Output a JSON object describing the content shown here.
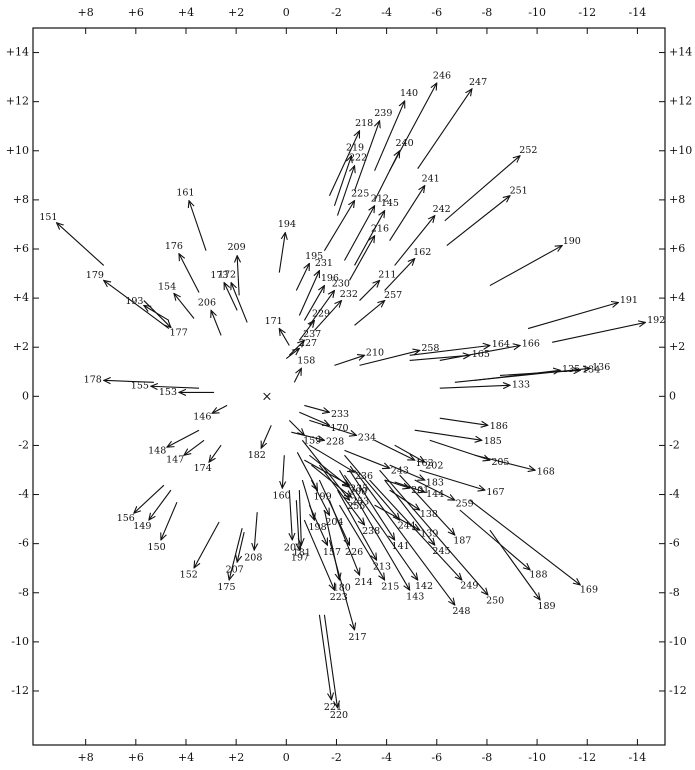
{
  "chart_data": {
    "type": "vector",
    "xlim": [
      10.1,
      -15.1
    ],
    "ylim": [
      -14.2,
      15
    ],
    "xticks": [
      {
        "value": 8,
        "label": "+8"
      },
      {
        "value": 6,
        "label": "+6"
      },
      {
        "value": 4,
        "label": "+4"
      },
      {
        "value": 2,
        "label": "+2"
      },
      0,
      -2,
      -4,
      -6,
      -8,
      -10,
      -12,
      -14
    ],
    "yticks": [
      {
        "value": 14,
        "label": "+14"
      },
      {
        "value": 12,
        "label": "+12"
      },
      {
        "value": 10,
        "label": "+10"
      },
      {
        "value": 8,
        "label": "+8"
      },
      {
        "value": 6,
        "label": "+6"
      },
      {
        "value": 4,
        "label": "+4"
      },
      {
        "value": 2,
        "label": "+2"
      },
      0,
      -2,
      -4,
      -6,
      -8,
      -10,
      -12
    ],
    "color": "#111111",
    "arrows": [
      {
        "label": "151",
        "x0": 7.28,
        "y0": 5.33,
        "x1": 9.16,
        "y1": 7.07
      },
      {
        "label": "179",
        "x0": 4.68,
        "y0": 2.76,
        "x1": 7.28,
        "y1": 4.72
      },
      {
        "label": "193",
        "x0": 4.68,
        "y0": 3.09,
        "x1": 5.68,
        "y1": 3.7
      },
      {
        "label": "177",
        "x0": 5.68,
        "y0": 3.9,
        "x1": 4.6,
        "y1": 2.8
      },
      {
        "label": "154",
        "x0": 3.68,
        "y0": 3.17,
        "x1": 4.48,
        "y1": 4.19
      },
      {
        "label": "176",
        "x0": 3.48,
        "y0": 4.23,
        "x1": 4.28,
        "y1": 5.81
      },
      {
        "label": "161",
        "x0": 3.2,
        "y0": 5.93,
        "x1": 3.88,
        "y1": 7.97
      },
      {
        "label": "206",
        "x0": 2.6,
        "y0": 2.48,
        "x1": 3.0,
        "y1": 3.5
      },
      {
        "label": "173",
        "x0": 1.96,
        "y0": 3.5,
        "x1": 2.48,
        "y1": 4.63
      },
      {
        "label": "209",
        "x0": 1.88,
        "y0": 4.11,
        "x1": 1.96,
        "y1": 5.73
      },
      {
        "label": "172",
        "x0": 1.56,
        "y0": 3.01,
        "x1": 2.2,
        "y1": 4.63
      },
      {
        "label": "194",
        "x0": 0.28,
        "y0": 5.04,
        "x1": 0.04,
        "y1": 6.67
      },
      {
        "label": "195",
        "x0": -0.4,
        "y0": 4.31,
        "x1": -0.92,
        "y1": 5.41
      },
      {
        "label": "171",
        "x0": -0.12,
        "y0": 2.07,
        "x1": 0.28,
        "y1": 2.76
      },
      {
        "label": "231",
        "x0": -0.52,
        "y0": 3.29,
        "x1": -1.32,
        "y1": 5.12
      },
      {
        "label": "196",
        "x0": -0.72,
        "y0": 3.09,
        "x1": -1.52,
        "y1": 4.51
      },
      {
        "label": "230",
        "x0": -0.92,
        "y0": 2.89,
        "x1": -1.92,
        "y1": 4.31
      },
      {
        "label": "232",
        "x0": -1.12,
        "y0": 2.68,
        "x1": -2.2,
        "y1": 3.9
      },
      {
        "label": "229",
        "x0": -0.52,
        "y0": 2.28,
        "x1": -1.12,
        "y1": 3.09
      },
      {
        "label": "237",
        "x0": -0.12,
        "y0": 1.67,
        "x1": -0.72,
        "y1": 2.28
      },
      {
        "label": "227",
        "x0": 0,
        "y0": 1.54,
        "x1": -0.52,
        "y1": 1.95
      },
      {
        "label": "158",
        "x0": -0.32,
        "y0": 0.57,
        "x1": -0.6,
        "y1": 1.14
      },
      {
        "label": "225",
        "x0": -1.52,
        "y0": 5.93,
        "x1": -2.72,
        "y1": 7.97
      },
      {
        "label": "218",
        "x0": -1.72,
        "y0": 8.17,
        "x1": -2.92,
        "y1": 10.81
      },
      {
        "label": "219",
        "x0": -1.92,
        "y0": 7.76,
        "x1": -2.6,
        "y1": 9.8
      },
      {
        "label": "222",
        "x0": -2.04,
        "y0": 7.36,
        "x1": -2.72,
        "y1": 9.39
      },
      {
        "label": "239",
        "x0": -2.72,
        "y0": 8.37,
        "x1": -3.72,
        "y1": 11.22
      },
      {
        "label": "140",
        "x0": -3.52,
        "y0": 9.19,
        "x1": -4.72,
        "y1": 12.03
      },
      {
        "label": "246",
        "x0": -4.12,
        "y0": 9.19,
        "x1": -6.0,
        "y1": 12.76
      },
      {
        "label": "240",
        "x0": -3.52,
        "y0": 7.97,
        "x1": -4.52,
        "y1": 10.0
      },
      {
        "label": "247",
        "x0": -5.24,
        "y0": 9.27,
        "x1": -7.4,
        "y1": 12.52
      },
      {
        "label": "252",
        "x0": -6.32,
        "y0": 7.15,
        "x1": -9.32,
        "y1": 9.8
      },
      {
        "label": "251",
        "x0": -6.4,
        "y0": 6.14,
        "x1": -8.92,
        "y1": 8.17
      },
      {
        "label": "212",
        "x0": -2.32,
        "y0": 5.53,
        "x1": -3.52,
        "y1": 7.76
      },
      {
        "label": "145",
        "x0": -2.72,
        "y0": 5.33,
        "x1": -3.92,
        "y1": 7.56
      },
      {
        "label": "216",
        "x0": -2.52,
        "y0": 4.72,
        "x1": -3.52,
        "y1": 6.54
      },
      {
        "label": "241",
        "x0": -4.12,
        "y0": 6.34,
        "x1": -5.52,
        "y1": 8.58
      },
      {
        "label": "242",
        "x0": -4.32,
        "y0": 5.33,
        "x1": -5.92,
        "y1": 7.36
      },
      {
        "label": "211",
        "x0": -2.92,
        "y0": 3.9,
        "x1": -3.72,
        "y1": 4.72
      },
      {
        "label": "162",
        "x0": -3.92,
        "y0": 4.31,
        "x1": -5.12,
        "y1": 5.61
      },
      {
        "label": "257",
        "x0": -2.72,
        "y0": 2.89,
        "x1": -3.92,
        "y1": 3.9
      },
      {
        "label": "190",
        "x0": -8.12,
        "y0": 4.51,
        "x1": -11.0,
        "y1": 6.14
      },
      {
        "label": "191",
        "x0": -9.64,
        "y0": 2.76,
        "x1": -13.24,
        "y1": 3.82
      },
      {
        "label": "192",
        "x0": -10.6,
        "y0": 2.2,
        "x1": -14.32,
        "y1": 3.01
      },
      {
        "label": "164",
        "x0": -4.92,
        "y0": 1.67,
        "x1": -8.12,
        "y1": 2.07
      },
      {
        "label": "166",
        "x0": -6.12,
        "y0": 1.46,
        "x1": -9.32,
        "y1": 2.07
      },
      {
        "label": "165",
        "x0": -4.92,
        "y0": 1.46,
        "x1": -7.32,
        "y1": 1.67
      },
      {
        "label": "258",
        "x0": -2.92,
        "y0": 1.26,
        "x1": -5.32,
        "y1": 1.87
      },
      {
        "label": "210",
        "x0": -1.92,
        "y0": 1.26,
        "x1": -3.12,
        "y1": 1.67
      },
      {
        "label": "135",
        "x0": -7.52,
        "y0": 0.65,
        "x1": -10.92,
        "y1": 1.06
      },
      {
        "label": "134",
        "x0": -8.52,
        "y0": 0.85,
        "x1": -11.72,
        "y1": 1.06
      },
      {
        "label": "136",
        "x0": -6.72,
        "y0": 0.57,
        "x1": -12.12,
        "y1": 1.14
      },
      {
        "label": "133",
        "x0": -6.12,
        "y0": 0.33,
        "x1": -8.92,
        "y1": 0.45
      },
      {
        "label": "178",
        "x0": 5.28,
        "y0": 0.57,
        "x1": 7.28,
        "y1": 0.65
      },
      {
        "label": "155",
        "x0": 3.48,
        "y0": 0.33,
        "x1": 5.4,
        "y1": 0.41
      },
      {
        "label": "153",
        "x0": 2.88,
        "y0": 0.16,
        "x1": 4.28,
        "y1": 0.16
      },
      {
        "label": "146",
        "x0": 2.36,
        "y0": -0.37,
        "x1": 2.96,
        "y1": -0.69
      },
      {
        "label": "148",
        "x0": 3.48,
        "y0": -1.38,
        "x1": 4.76,
        "y1": -2.07
      },
      {
        "label": "147",
        "x0": 3.28,
        "y0": -1.79,
        "x1": 4.08,
        "y1": -2.4
      },
      {
        "label": "174",
        "x0": 2.6,
        "y0": -1.99,
        "x1": 3.08,
        "y1": -2.68
      },
      {
        "label": "156",
        "x0": 4.88,
        "y0": -3.62,
        "x1": 6.08,
        "y1": -4.76
      },
      {
        "label": "149",
        "x0": 4.6,
        "y0": -3.82,
        "x1": 5.48,
        "y1": -5.04
      },
      {
        "label": "150",
        "x0": 4.36,
        "y0": -4.31,
        "x1": 5.0,
        "y1": -5.85
      },
      {
        "label": "152",
        "x0": 2.68,
        "y0": -5.12,
        "x1": 3.68,
        "y1": -6.99
      },
      {
        "label": "175",
        "x0": 1.76,
        "y0": -5.37,
        "x1": 2.28,
        "y1": -7.48
      },
      {
        "label": "207",
        "x0": 1.68,
        "y0": -5.53,
        "x1": 1.96,
        "y1": -6.75
      },
      {
        "label": "208",
        "x0": 1.16,
        "y0": -4.72,
        "x1": 1.28,
        "y1": -6.26
      },
      {
        "label": "182",
        "x0": 0.6,
        "y0": -1.18,
        "x1": 1.0,
        "y1": -2.11
      },
      {
        "label": "160",
        "x0": 0.08,
        "y0": -2.4,
        "x1": 0.16,
        "y1": -3.74
      },
      {
        "label": "203",
        "x0": -0.12,
        "y0": -3.82,
        "x1": -0.24,
        "y1": -5.85
      },
      {
        "label": "197",
        "x0": -0.4,
        "y0": -4.23,
        "x1": -0.52,
        "y1": -6.26
      },
      {
        "label": "181",
        "x0": -0.52,
        "y0": -3.82,
        "x1": -0.6,
        "y1": -6.06
      },
      {
        "label": "198",
        "x0": -0.64,
        "y0": -3.41,
        "x1": -1.12,
        "y1": -5.04
      },
      {
        "label": "157",
        "x0": -0.92,
        "y0": -4.43,
        "x1": -1.64,
        "y1": -6.06
      },
      {
        "label": "204",
        "x0": -1.0,
        "y0": -3.41,
        "x1": -1.72,
        "y1": -4.84
      },
      {
        "label": "199",
        "x0": -0.44,
        "y0": -2.28,
        "x1": -1.24,
        "y1": -3.82
      },
      {
        "label": "159",
        "x0": -0.12,
        "y0": -0.98,
        "x1": -0.72,
        "y1": -1.59
      },
      {
        "label": "170",
        "x0": -0.52,
        "y0": -0.65,
        "x1": -1.72,
        "y1": -1.18
      },
      {
        "label": "233",
        "x0": -0.72,
        "y0": -0.37,
        "x1": -1.72,
        "y1": -0.65
      },
      {
        "label": "228",
        "x0": -0.2,
        "y0": -1.46,
        "x1": -1.52,
        "y1": -1.79
      },
      {
        "label": "234",
        "x0": -0.92,
        "y0": -0.98,
        "x1": -2.8,
        "y1": -1.59
      },
      {
        "label": "236",
        "x0": -0.92,
        "y0": -1.99,
        "x1": -2.72,
        "y1": -3.09
      },
      {
        "label": "235",
        "x0": -0.72,
        "y0": -2.6,
        "x1": -2.52,
        "y1": -3.62
      },
      {
        "label": "253",
        "x0": -1.0,
        "y0": -2.8,
        "x1": -2.6,
        "y1": -4.11
      },
      {
        "label": "200",
        "x0": -0.92,
        "y0": -2.4,
        "x1": -2.52,
        "y1": -3.7
      },
      {
        "label": "255",
        "x0": -0.64,
        "y0": -1.79,
        "x1": -2.52,
        "y1": -4.23
      },
      {
        "label": "226",
        "x0": -1.32,
        "y0": -3.41,
        "x1": -2.52,
        "y1": -6.06
      },
      {
        "label": "238",
        "x0": -1.32,
        "y0": -2.8,
        "x1": -3.12,
        "y1": -5.24
      },
      {
        "label": "180",
        "x0": -1.52,
        "y0": -4.63,
        "x1": -2.12,
        "y1": -7.48
      },
      {
        "label": "223",
        "x0": -0.72,
        "y0": -5.04,
        "x1": -1.92,
        "y1": -7.89
      },
      {
        "label": "217",
        "x0": -1.72,
        "y0": -5.85,
        "x1": -2.72,
        "y1": -9.51
      },
      {
        "label": "221",
        "x0": -1.32,
        "y0": -8.9,
        "x1": -1.8,
        "y1": -12.36
      },
      {
        "label": "220",
        "x0": -1.52,
        "y0": -8.9,
        "x1": -2.04,
        "y1": -12.68
      },
      {
        "label": "214",
        "x0": -1.72,
        "y0": -4.23,
        "x1": -2.92,
        "y1": -7.28
      },
      {
        "label": "213",
        "x0": -2.04,
        "y0": -3.82,
        "x1": -3.6,
        "y1": -6.67
      },
      {
        "label": "215",
        "x0": -2.12,
        "y0": -4.43,
        "x1": -3.92,
        "y1": -7.48
      },
      {
        "label": "143",
        "x0": -2.12,
        "y0": -3.01,
        "x1": -4.92,
        "y1": -7.89
      },
      {
        "label": "142",
        "x0": -2.32,
        "y0": -3.21,
        "x1": -5.24,
        "y1": -7.48
      },
      {
        "label": "141",
        "x0": -2.52,
        "y0": -3.01,
        "x1": -4.32,
        "y1": -5.85
      },
      {
        "label": "244",
        "x0": -2.32,
        "y0": -2.4,
        "x1": -4.52,
        "y1": -5.04
      },
      {
        "label": "248",
        "x0": -2.72,
        "y0": -3.01,
        "x1": -6.72,
        "y1": -8.5
      },
      {
        "label": "249",
        "x0": -3.32,
        "y0": -3.41,
        "x1": -7.0,
        "y1": -7.48
      },
      {
        "label": "250",
        "x0": -3.72,
        "y0": -3.01,
        "x1": -8.04,
        "y1": -8.09
      },
      {
        "label": "245",
        "x0": -3.92,
        "y0": -3.41,
        "x1": -5.92,
        "y1": -6.06
      },
      {
        "label": "187",
        "x0": -4.52,
        "y0": -3.21,
        "x1": -6.72,
        "y1": -5.65
      },
      {
        "label": "139",
        "x0": -3.52,
        "y0": -4.43,
        "x1": -5.32,
        "y1": -5.45
      },
      {
        "label": "138",
        "x0": -4.12,
        "y0": -3.82,
        "x1": -5.32,
        "y1": -4.63
      },
      {
        "label": "259",
        "x0": -5.12,
        "y0": -3.41,
        "x1": -6.72,
        "y1": -4.23
      },
      {
        "label": "201",
        "x0": -3.92,
        "y0": -3.41,
        "x1": -4.92,
        "y1": -3.74
      },
      {
        "label": "144",
        "x0": -4.32,
        "y0": -3.49,
        "x1": -5.52,
        "y1": -3.9
      },
      {
        "label": "243",
        "x0": -2.32,
        "y0": -2.2,
        "x1": -4.12,
        "y1": -2.93
      },
      {
        "label": "163",
        "x0": -3.52,
        "y0": -1.79,
        "x1": -5.12,
        "y1": -2.6
      },
      {
        "label": "202",
        "x0": -4.32,
        "y0": -1.99,
        "x1": -5.52,
        "y1": -2.68
      },
      {
        "label": "183",
        "x0": -4.12,
        "y0": -2.8,
        "x1": -5.52,
        "y1": -3.41
      },
      {
        "label": "185",
        "x0": -5.12,
        "y0": -1.38,
        "x1": -7.8,
        "y1": -1.79
      },
      {
        "label": "186",
        "x0": -6.12,
        "y0": -0.89,
        "x1": -8.04,
        "y1": -1.18
      },
      {
        "label": "205",
        "x0": -5.72,
        "y0": -1.79,
        "x1": -8.12,
        "y1": -2.6
      },
      {
        "label": "168",
        "x0": -7.52,
        "y0": -2.4,
        "x1": -9.92,
        "y1": -3.01
      },
      {
        "label": "167",
        "x0": -5.32,
        "y0": -3.01,
        "x1": -7.92,
        "y1": -3.82
      },
      {
        "label": "188",
        "x0": -6.92,
        "y0": -4.63,
        "x1": -9.72,
        "y1": -7.07
      },
      {
        "label": "189",
        "x0": -8.12,
        "y0": -5.45,
        "x1": -10.12,
        "y1": -8.29
      },
      {
        "label": "169",
        "x0": -7.32,
        "y0": -4.23,
        "x1": -11.72,
        "y1": -7.68
      }
    ]
  }
}
